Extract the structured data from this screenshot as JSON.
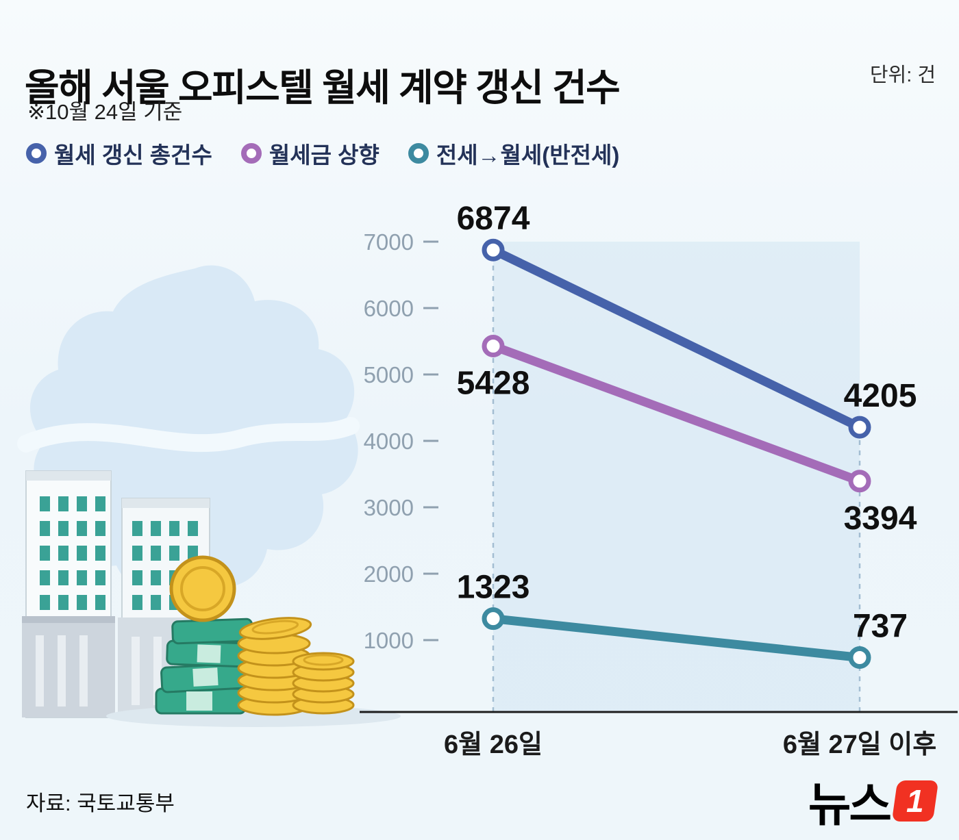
{
  "header": {
    "title": "올해 서울 오피스텔 월세 계약 갱신 건수",
    "unit_label": "단위: 건",
    "subtitle": "※10월 24일 기준"
  },
  "legend": [
    {
      "label": "월세 갱신 총건수",
      "color": "#4662aa"
    },
    {
      "label": "월세금 상향",
      "color": "#a46cb8"
    },
    {
      "label": "전세→월세(반전세)",
      "color": "#3d8aa0"
    }
  ],
  "chart_data": {
    "type": "line",
    "subtype": "slope",
    "title": "올해 서울 오피스텔 월세 계약 갱신 건수",
    "unit": "건",
    "as_of": "※10월 24일 기준",
    "categories": [
      "6월 26일",
      "6월 27일 이후"
    ],
    "series": [
      {
        "name": "월세 갱신 총건수",
        "color": "#4662aa",
        "values": [
          6874,
          4205
        ]
      },
      {
        "name": "월세금 상향",
        "color": "#a46cb8",
        "values": [
          5428,
          3394
        ]
      },
      {
        "name": "전세→월세(반전세)",
        "color": "#3d8aa0",
        "values": [
          1323,
          737
        ]
      }
    ],
    "yticks": [
      7000,
      6000,
      5000,
      4000,
      3000,
      2000,
      1000
    ],
    "ylim": [
      0,
      7400
    ],
    "grid": false,
    "legend_position": "top-left"
  },
  "footer": {
    "source": "자료: 국토교통부",
    "logo_text": "뉴스",
    "logo_badge": "1"
  }
}
